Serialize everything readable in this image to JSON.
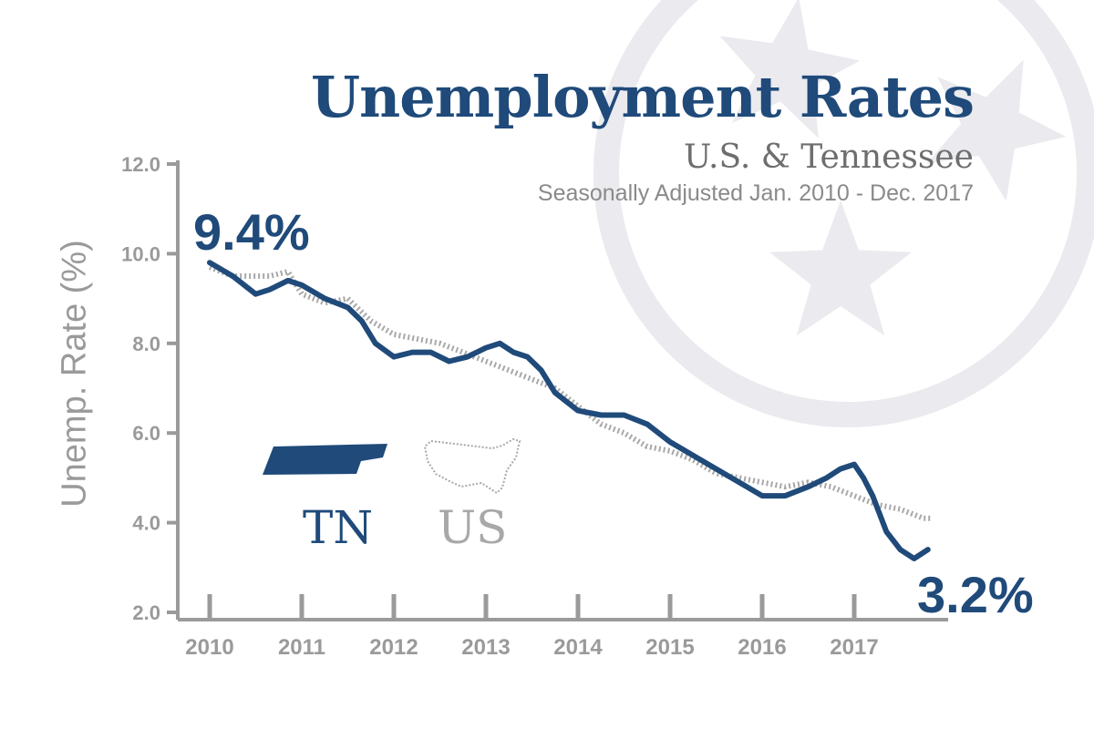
{
  "header": {
    "title": "Unemployment Rates",
    "subtitle": "U.S. & Tennessee",
    "note": "Seasonally Adjusted Jan. 2010 - Dec. 2017"
  },
  "callouts": {
    "start": "9.4%",
    "end": "3.2%"
  },
  "legend": [
    {
      "label": "TN",
      "icon": "tennessee-state-icon",
      "color": "#1f4a7a",
      "style": "solid"
    },
    {
      "label": "US",
      "icon": "usa-map-icon",
      "color": "#a8a8a8",
      "style": "dotted"
    }
  ],
  "colors": {
    "tn": "#1f4a7a",
    "us": "#a8a8a8",
    "axis": "#9a9a9a",
    "background_emblem": "#eaeaef"
  },
  "background_emblem_icon": "tennessee-tri-star-icon",
  "chart_data": {
    "type": "line",
    "xlabel": "",
    "ylabel": "Unemp. Rate (%)",
    "ylim": [
      2.0,
      12.0
    ],
    "yticks": [
      "2.0",
      "4.0",
      "6.0",
      "8.0",
      "10.0",
      "12.0"
    ],
    "xlim": [
      2010,
      2018
    ],
    "xticks": [
      "2010",
      "2011",
      "2012",
      "2013",
      "2014",
      "2015",
      "2016",
      "2017"
    ],
    "grid": false,
    "series": [
      {
        "name": "TN",
        "x": [
          2010.0,
          2010.25,
          2010.5,
          2010.65,
          2010.85,
          2011.0,
          2011.25,
          2011.5,
          2011.65,
          2011.8,
          2012.0,
          2012.2,
          2012.4,
          2012.6,
          2012.8,
          2013.0,
          2013.15,
          2013.3,
          2013.45,
          2013.6,
          2013.75,
          2014.0,
          2014.25,
          2014.5,
          2014.75,
          2015.0,
          2015.25,
          2015.5,
          2015.75,
          2016.0,
          2016.25,
          2016.5,
          2016.7,
          2016.85,
          2017.0,
          2017.1,
          2017.2,
          2017.35,
          2017.5,
          2017.65,
          2017.8
        ],
        "y": [
          9.8,
          9.5,
          9.1,
          9.2,
          9.4,
          9.3,
          9.0,
          8.8,
          8.5,
          8.0,
          7.7,
          7.8,
          7.8,
          7.6,
          7.7,
          7.9,
          8.0,
          7.8,
          7.7,
          7.4,
          6.9,
          6.5,
          6.4,
          6.4,
          6.2,
          5.8,
          5.5,
          5.2,
          4.9,
          4.6,
          4.6,
          4.8,
          5.0,
          5.2,
          5.3,
          5.0,
          4.6,
          3.8,
          3.4,
          3.2,
          3.4
        ]
      },
      {
        "name": "US",
        "x": [
          2010.0,
          2010.25,
          2010.5,
          2010.65,
          2010.85,
          2011.0,
          2011.25,
          2011.5,
          2011.75,
          2012.0,
          2012.25,
          2012.5,
          2012.75,
          2013.0,
          2013.25,
          2013.5,
          2013.75,
          2014.0,
          2014.25,
          2014.5,
          2014.75,
          2015.0,
          2015.25,
          2015.5,
          2015.75,
          2016.0,
          2016.25,
          2016.5,
          2016.75,
          2017.0,
          2017.25,
          2017.5,
          2017.75,
          2017.85
        ],
        "y": [
          9.7,
          9.5,
          9.5,
          9.5,
          9.6,
          9.1,
          8.9,
          9.0,
          8.5,
          8.2,
          8.1,
          8.0,
          7.8,
          7.6,
          7.4,
          7.2,
          7.0,
          6.6,
          6.2,
          6.0,
          5.7,
          5.6,
          5.4,
          5.1,
          5.0,
          4.9,
          4.8,
          4.9,
          4.8,
          4.6,
          4.4,
          4.3,
          4.1,
          4.1
        ]
      }
    ]
  }
}
